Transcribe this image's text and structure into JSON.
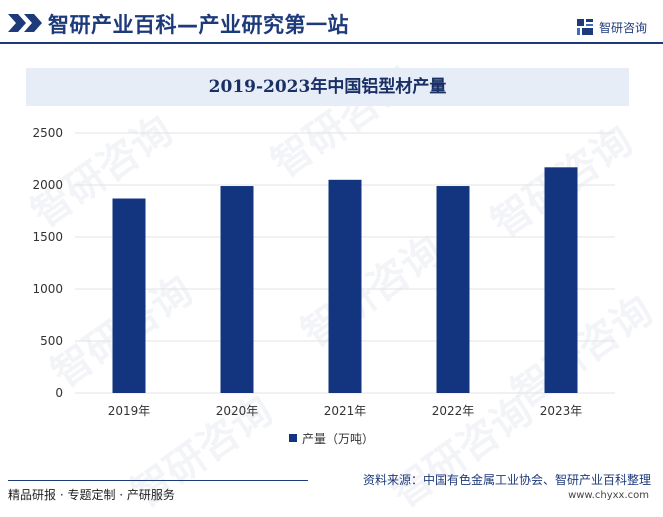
{
  "header": {
    "site_title": "智研产业百科—产业研究第一站",
    "brand_name": "智研咨询"
  },
  "chart_data": {
    "type": "bar",
    "title": "2019-2023年中国铝型材产量",
    "categories": [
      "2019年",
      "2020年",
      "2021年",
      "2022年",
      "2023年"
    ],
    "series": [
      {
        "name": "产量（万吨）",
        "values": [
          1870,
          1990,
          2050,
          1990,
          2170
        ],
        "color": "#13347f"
      }
    ],
    "yticks": [
      0,
      500,
      1000,
      1500,
      2000,
      2500
    ],
    "ylim": [
      0,
      2500
    ],
    "grid": true,
    "legend_position": "bottom"
  },
  "footer": {
    "source": "资料来源：中国有色金属工业协会、智研产业百科整理",
    "website": "www.chyxx.com",
    "tagline": "精品研报 · 专题定制 · 产研服务"
  },
  "colors": {
    "brand": "#1d3a7a",
    "bar": "#13347f",
    "title_band": "#e6edf7",
    "grid": "#e3e3e3"
  }
}
